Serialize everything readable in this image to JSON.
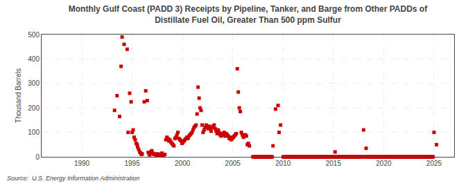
{
  "chart_data": {
    "type": "scatter",
    "title": "Monthly Gulf Coast (PADD 3) Receipts by Pipeline, Tanker, and Barge from Other PADDs of",
    "subtitle": "Distillate Fuel Oil, Greater Than 500 ppm Sulfur",
    "ylabel": "Thousand Barrels",
    "source": "Source:  U.S. Energy Information Administration",
    "color": "#cc0000",
    "marker": "square",
    "grid": true,
    "xlim": [
      1986,
      2027
    ],
    "ylim": [
      0,
      500
    ],
    "xticks": [
      1990,
      1995,
      2000,
      2005,
      2010,
      2015,
      2020,
      2025
    ],
    "yticks": [
      0,
      100,
      200,
      300,
      400,
      500
    ],
    "x": [
      1993.25,
      1993.5,
      1993.75,
      1993.9,
      1994.0,
      1994.2,
      1994.5,
      1994.6,
      1994.75,
      1994.9,
      1995.0,
      1995.1,
      1995.2,
      1995.3,
      1995.4,
      1995.5,
      1995.55,
      1995.65,
      1995.75,
      1995.85,
      1995.92,
      1996.0,
      1996.2,
      1996.35,
      1996.5,
      1996.6,
      1996.7,
      1996.75,
      1996.85,
      1996.95,
      1997.05,
      1997.15,
      1997.25,
      1997.35,
      1997.45,
      1997.55,
      1997.65,
      1997.75,
      1997.85,
      1997.95,
      1998.05,
      1998.15,
      1998.25,
      1998.35,
      1998.45,
      1998.55,
      1998.65,
      1998.75,
      1998.85,
      1998.95,
      1999.05,
      1999.15,
      1999.25,
      1999.35,
      1999.45,
      1999.55,
      1999.65,
      1999.75,
      1999.85,
      1999.95,
      2000.05,
      2000.15,
      2000.25,
      2000.35,
      2000.45,
      2000.55,
      2000.65,
      2000.75,
      2000.85,
      2000.95,
      2001.05,
      2001.15,
      2001.25,
      2001.35,
      2001.45,
      2001.55,
      2001.65,
      2001.75,
      2001.85,
      2001.95,
      2002.05,
      2002.15,
      2002.25,
      2002.35,
      2002.45,
      2002.55,
      2002.65,
      2002.75,
      2002.85,
      2002.95,
      2003.05,
      2003.15,
      2003.25,
      2003.35,
      2003.45,
      2003.55,
      2003.65,
      2003.75,
      2003.85,
      2003.95,
      2004.05,
      2004.15,
      2004.25,
      2004.35,
      2004.45,
      2004.55,
      2004.65,
      2004.75,
      2004.85,
      2004.95,
      2005.05,
      2005.15,
      2005.25,
      2005.35,
      2005.45,
      2005.55,
      2005.65,
      2005.75,
      2005.85,
      2005.95,
      2006.05,
      2006.15,
      2006.25,
      2006.35,
      2006.45,
      2006.55,
      2006.65,
      2007.0,
      2007.083,
      2007.167,
      2007.25,
      2007.333,
      2007.417,
      2007.5,
      2007.583,
      2007.667,
      2007.75,
      2007.833,
      2007.917,
      2008.0,
      2008.083,
      2008.167,
      2008.25,
      2008.333,
      2008.417,
      2008.5,
      2008.583,
      2008.667,
      2008.75,
      2008.833,
      2008.917,
      2009.0,
      2009.25,
      2009.5,
      2009.6,
      2009.75,
      2010.0,
      2010.083,
      2010.167,
      2010.25,
      2010.333,
      2010.417,
      2010.5,
      2010.583,
      2010.667,
      2010.75,
      2010.833,
      2010.917,
      2011.0,
      2011.083,
      2011.167,
      2011.25,
      2011.333,
      2011.417,
      2011.5,
      2011.583,
      2011.667,
      2011.75,
      2011.833,
      2011.917,
      2012.0,
      2012.083,
      2012.167,
      2012.25,
      2012.333,
      2012.417,
      2012.5,
      2012.583,
      2012.667,
      2012.75,
      2012.833,
      2012.917,
      2013.0,
      2013.083,
      2013.167,
      2013.25,
      2013.333,
      2013.417,
      2013.5,
      2013.583,
      2013.667,
      2013.75,
      2013.833,
      2013.917,
      2014.0,
      2014.083,
      2014.167,
      2014.25,
      2014.333,
      2014.417,
      2014.5,
      2014.583,
      2014.667,
      2014.75,
      2014.833,
      2014.917,
      2015.0,
      2015.083,
      2015.167,
      2015.25,
      2015.333,
      2015.417,
      2015.5,
      2015.583,
      2015.667,
      2015.75,
      2015.833,
      2015.917,
      2016.0,
      2016.083,
      2016.167,
      2016.25,
      2016.333,
      2016.417,
      2016.5,
      2016.583,
      2016.667,
      2016.75,
      2016.833,
      2016.917,
      2017.0,
      2017.083,
      2017.167,
      2017.25,
      2017.333,
      2017.417,
      2017.5,
      2017.583,
      2017.667,
      2017.75,
      2017.833,
      2017.917,
      2018.0,
      2018.083,
      2018.167,
      2018.25,
      2018.333,
      2018.417,
      2018.5,
      2018.583,
      2018.667,
      2018.75,
      2018.833,
      2018.917,
      2019.0,
      2019.083,
      2019.167,
      2019.25,
      2019.333,
      2019.417,
      2019.5,
      2019.583,
      2019.667,
      2019.75,
      2019.833,
      2019.917,
      2020.0,
      2020.083,
      2020.167,
      2020.25,
      2020.333,
      2020.417,
      2020.5,
      2020.583,
      2020.667,
      2020.75,
      2020.833,
      2020.917,
      2021.0,
      2021.083,
      2021.167,
      2021.25,
      2021.333,
      2021.417,
      2021.5,
      2021.583,
      2021.667,
      2021.75,
      2021.833,
      2021.917,
      2022.0,
      2022.083,
      2022.167,
      2022.25,
      2022.333,
      2022.417,
      2022.5,
      2022.583,
      2022.667,
      2022.75,
      2022.833,
      2022.917,
      2023.0,
      2023.083,
      2023.167,
      2023.25,
      2023.333,
      2023.417,
      2023.5,
      2023.583,
      2023.667,
      2023.75,
      2023.833,
      2023.917,
      2024.0,
      2024.083,
      2024.167,
      2024.25,
      2024.333,
      2024.417,
      2024.5,
      2024.583,
      2024.667,
      2024.75,
      2024.833,
      2024.917,
      2025.0,
      2025.25
    ],
    "values": [
      190,
      250,
      165,
      370,
      490,
      460,
      440,
      100,
      260,
      225,
      100,
      110,
      80,
      70,
      55,
      50,
      40,
      30,
      20,
      15,
      10,
      12,
      225,
      270,
      230,
      18,
      10,
      8,
      20,
      25,
      15,
      10,
      12,
      8,
      5,
      12,
      8,
      6,
      10,
      15,
      5,
      8,
      10,
      70,
      80,
      75,
      65,
      70,
      60,
      55,
      50,
      45,
      75,
      80,
      90,
      100,
      75,
      70,
      65,
      55,
      60,
      65,
      70,
      75,
      80,
      75,
      85,
      90,
      95,
      100,
      110,
      120,
      125,
      130,
      175,
      285,
      240,
      200,
      190,
      130,
      100,
      110,
      120,
      130,
      125,
      115,
      125,
      115,
      105,
      120,
      125,
      130,
      115,
      105,
      95,
      110,
      100,
      90,
      85,
      95,
      90,
      100,
      85,
      95,
      90,
      85,
      75,
      80,
      70,
      75,
      80,
      85,
      90,
      95,
      360,
      265,
      200,
      185,
      100,
      90,
      80,
      85,
      90,
      85,
      50,
      55,
      45,
      0,
      0,
      0,
      0,
      0,
      0,
      0,
      0,
      0,
      0,
      0,
      0,
      0,
      0,
      0,
      0,
      0,
      0,
      0,
      0,
      0,
      0,
      0,
      0,
      45,
      195,
      210,
      100,
      130,
      0,
      0,
      0,
      0,
      0,
      0,
      0,
      0,
      0,
      0,
      0,
      0,
      0,
      0,
      0,
      0,
      0,
      0,
      0,
      0,
      0,
      0,
      0,
      0,
      0,
      0,
      0,
      0,
      0,
      0,
      0,
      0,
      0,
      0,
      0,
      0,
      0,
      0,
      0,
      0,
      0,
      0,
      0,
      0,
      0,
      0,
      0,
      0,
      0,
      0,
      0,
      0,
      0,
      0,
      0,
      0,
      0,
      0,
      0,
      0,
      0,
      0,
      20,
      0,
      0,
      0,
      0,
      0,
      0,
      0,
      0,
      0,
      0,
      0,
      0,
      0,
      0,
      0,
      0,
      0,
      0,
      0,
      0,
      0,
      0,
      0,
      0,
      0,
      0,
      0,
      0,
      0,
      0,
      0,
      0,
      0,
      110,
      0,
      0,
      35,
      0,
      0,
      0,
      0,
      0,
      0,
      0,
      0,
      0,
      0,
      0,
      0,
      0,
      0,
      0,
      0,
      0,
      0,
      0,
      0,
      0,
      0,
      0,
      0,
      0,
      0,
      0,
      0,
      0,
      0,
      0,
      0,
      0,
      0,
      0,
      0,
      0,
      0,
      0,
      0,
      0,
      0,
      0,
      0,
      0,
      0,
      0,
      0,
      0,
      0,
      0,
      0,
      0,
      0,
      0,
      0,
      0,
      0,
      0,
      0,
      0,
      0,
      0,
      0,
      0,
      0,
      0,
      0,
      0,
      0,
      0,
      0,
      0,
      0,
      0,
      0,
      0,
      0,
      0,
      0,
      100,
      50
    ]
  }
}
